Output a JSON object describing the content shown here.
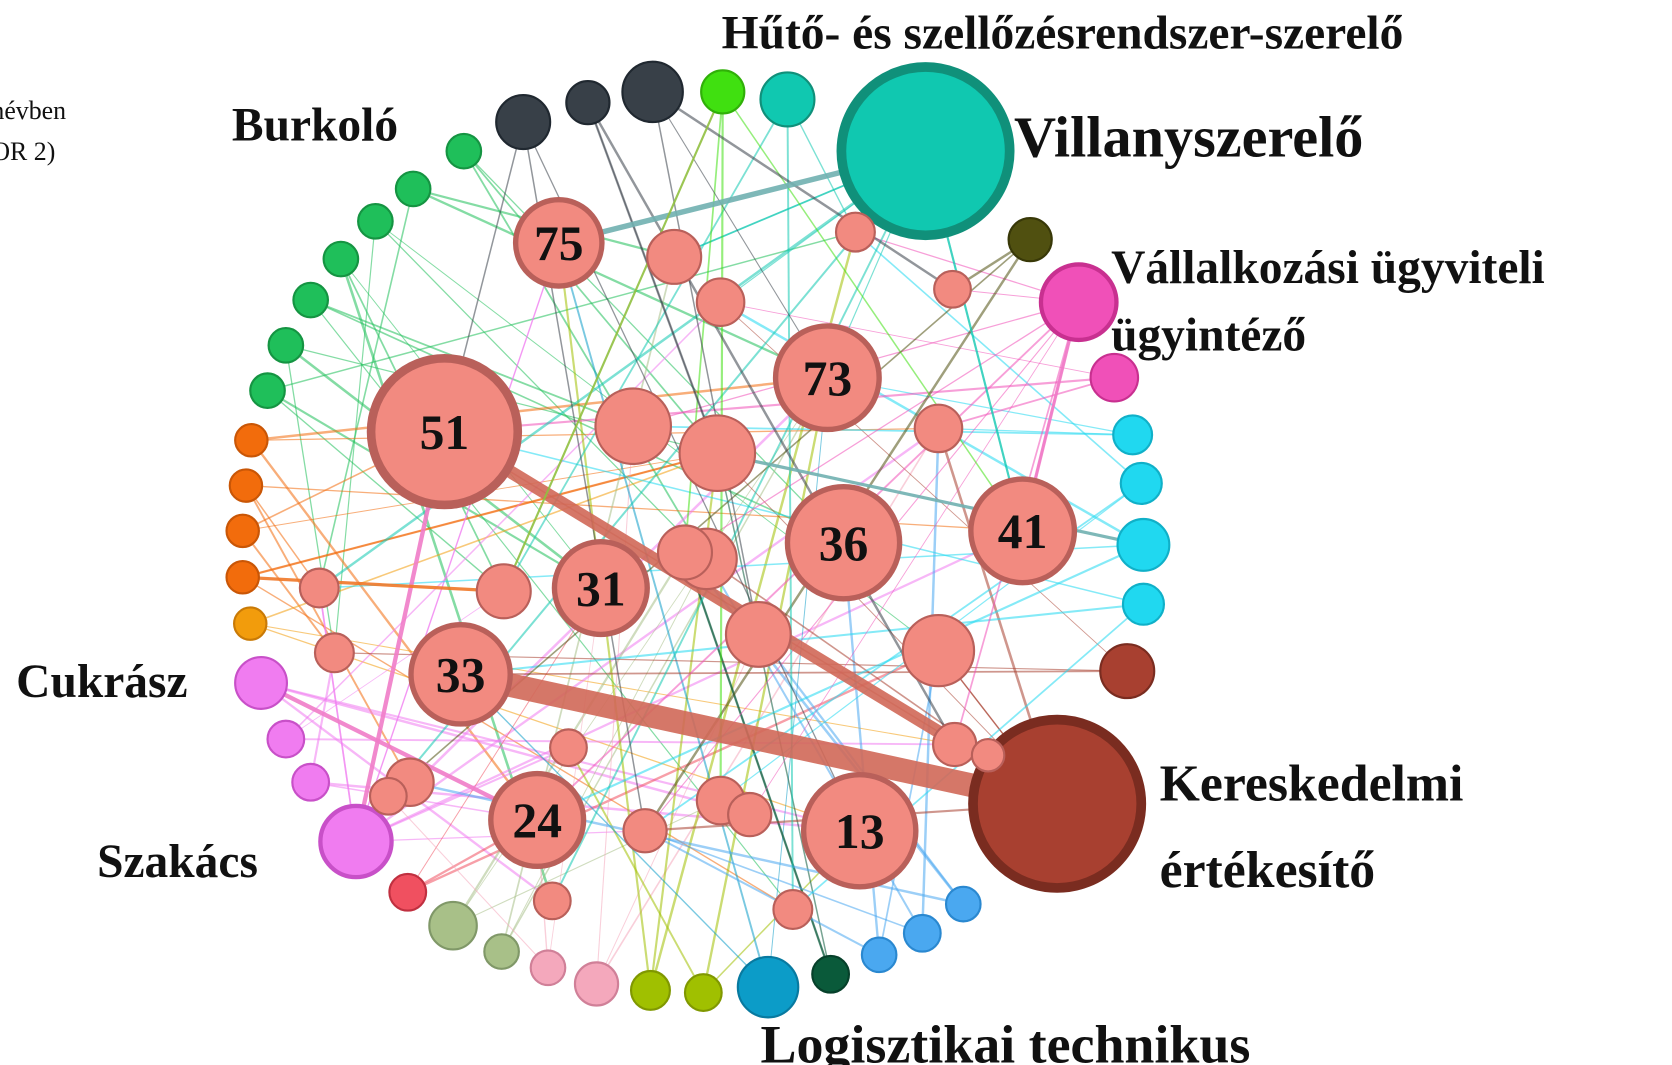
{
  "header": {
    "fragments": [
      "névben",
      "OR 2)"
    ]
  },
  "nodes": [
    "75",
    "51",
    "73",
    "36",
    "41",
    "31",
    "33",
    "24",
    "13"
  ],
  "labels": [
    {
      "lines": [
        "Hűtő- és szellőzésrendszer-szerelő"
      ]
    },
    {
      "lines": [
        "Villanyszerelő"
      ]
    },
    {
      "lines": [
        "Burkoló"
      ]
    },
    {
      "lines": [
        "Vállalkozási ügyviteli",
        "ügyintéző"
      ]
    },
    {
      "lines": [
        "Cukrász"
      ]
    },
    {
      "lines": [
        "Szakács"
      ]
    },
    {
      "lines": [
        "Kereskedelmi",
        "értékesítő"
      ]
    },
    {
      "lines": [
        "Logisztikai technikus"
      ]
    }
  ]
}
